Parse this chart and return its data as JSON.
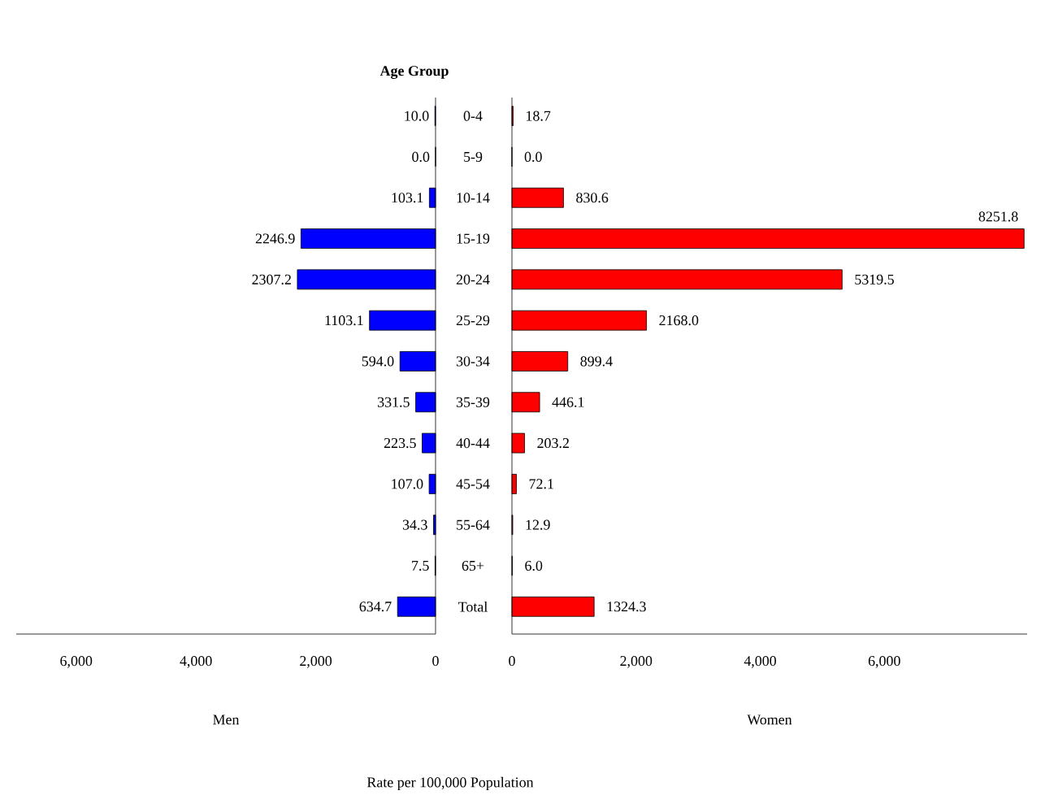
{
  "chart_data": [
    {
      "type": "bar",
      "orientation": "horizontal",
      "title": "Age Group",
      "xlabel": "Men",
      "annotations": [
        "Rate per 100,000 Population"
      ],
      "categories": [
        "0-4",
        "5-9",
        "10-14",
        "15-19",
        "20-24",
        "25-29",
        "30-34",
        "35-39",
        "40-44",
        "45-54",
        "55-64",
        "65+",
        "Total"
      ],
      "values": [
        10.0,
        0.0,
        103.1,
        2246.9,
        2307.2,
        1103.1,
        594.0,
        331.5,
        223.5,
        107.0,
        34.3,
        7.5,
        634.7
      ],
      "value_labels": [
        "10.0",
        "0.0",
        "103.1",
        "2246.9",
        "2307.2",
        "1103.1",
        "594.0",
        "331.5",
        "223.5",
        "107.0",
        "34.3",
        "7.5",
        "634.7"
      ],
      "color": "#0000ff",
      "xlim": [
        7000,
        0
      ],
      "xticks": [
        {
          "value": 6000,
          "label": "6,000"
        },
        {
          "value": 4000,
          "label": "4,000"
        },
        {
          "value": 2000,
          "label": "2,000"
        },
        0
      ]
    },
    {
      "type": "bar",
      "orientation": "horizontal",
      "xlabel": "Women",
      "tick_labels": "x",
      "categories": [
        null,
        null,
        null,
        null,
        null,
        null,
        null,
        null,
        null,
        null,
        null,
        null,
        null
      ],
      "values": [
        18.7,
        0.0,
        830.6,
        8251.8,
        5319.5,
        2168.0,
        899.4,
        446.1,
        203.2,
        72.1,
        12.9,
        6.0,
        1324.3
      ],
      "value_labels": [
        "18.7",
        "0.0",
        "830.6",
        "8251.8",
        "5319.5",
        "2168.0",
        "899.4",
        "446.1",
        "203.2",
        "72.1",
        "12.9",
        "6.0",
        "1324.3"
      ],
      "color": "#ff0000",
      "xlim": [
        0,
        8300
      ],
      "xticks": [
        0,
        {
          "value": 2000,
          "label": "2,000"
        },
        {
          "value": 4000,
          "label": "4,000"
        },
        {
          "value": 6000,
          "label": "6,000"
        }
      ]
    }
  ]
}
